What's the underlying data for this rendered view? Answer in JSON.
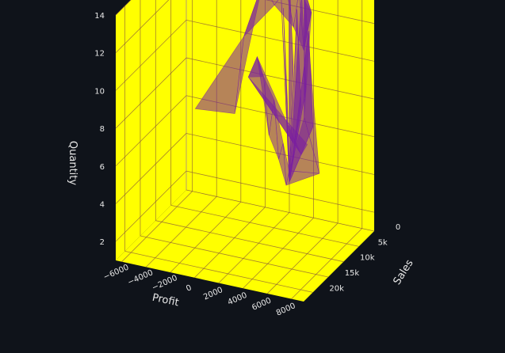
{
  "chart_data": {
    "type": "mesh3d",
    "x": {
      "title": "Profit",
      "range": [
        -6500,
        9000
      ],
      "ticks": [
        -6000,
        -4000,
        -2000,
        0,
        2000,
        4000,
        6000,
        8000
      ],
      "tick_labels": [
        "−6000",
        "−4000",
        "−2000",
        "0",
        "2000",
        "4000",
        "6000",
        "8000"
      ]
    },
    "y": {
      "title": "Sales",
      "range": [
        0,
        23000
      ],
      "ticks": [
        0,
        5000,
        10000,
        15000,
        20000
      ],
      "tick_labels": [
        "0",
        "5k",
        "10k",
        "15k",
        "20k"
      ]
    },
    "z": {
      "title": "Quantity",
      "range": [
        1,
        14
      ],
      "ticks": [
        2,
        4,
        6,
        8,
        10,
        12,
        14
      ],
      "tick_labels": [
        "2",
        "4",
        "6",
        "8",
        "10",
        "12",
        "14"
      ]
    },
    "colors": {
      "background": "#0f131a",
      "walls": "#ffff00",
      "mesh": "#7a1fa0",
      "grid": "#8a5a3a"
    },
    "points": [
      [
        -5000,
        3000,
        6
      ],
      [
        -2000,
        2000,
        6
      ],
      [
        -1500,
        1000,
        10
      ],
      [
        0,
        800,
        13
      ],
      [
        1000,
        900,
        12
      ],
      [
        2000,
        1000,
        13
      ],
      [
        2500,
        600,
        11
      ],
      [
        3000,
        800,
        13
      ],
      [
        3500,
        1200,
        10
      ],
      [
        4000,
        700,
        12
      ],
      [
        4500,
        5000,
        14
      ],
      [
        5500,
        9000,
        8
      ],
      [
        6500,
        8000,
        5
      ],
      [
        3000,
        4000,
        4
      ],
      [
        2500,
        3000,
        3
      ],
      [
        2000,
        2000,
        5
      ],
      [
        1500,
        1500,
        4
      ],
      [
        1000,
        1000,
        7
      ],
      [
        500,
        700,
        5
      ],
      [
        0,
        500,
        8
      ],
      [
        -500,
        600,
        9
      ],
      [
        -1000,
        1500,
        8
      ],
      [
        4000,
        4000,
        5
      ],
      [
        5000,
        6000,
        6
      ]
    ]
  }
}
